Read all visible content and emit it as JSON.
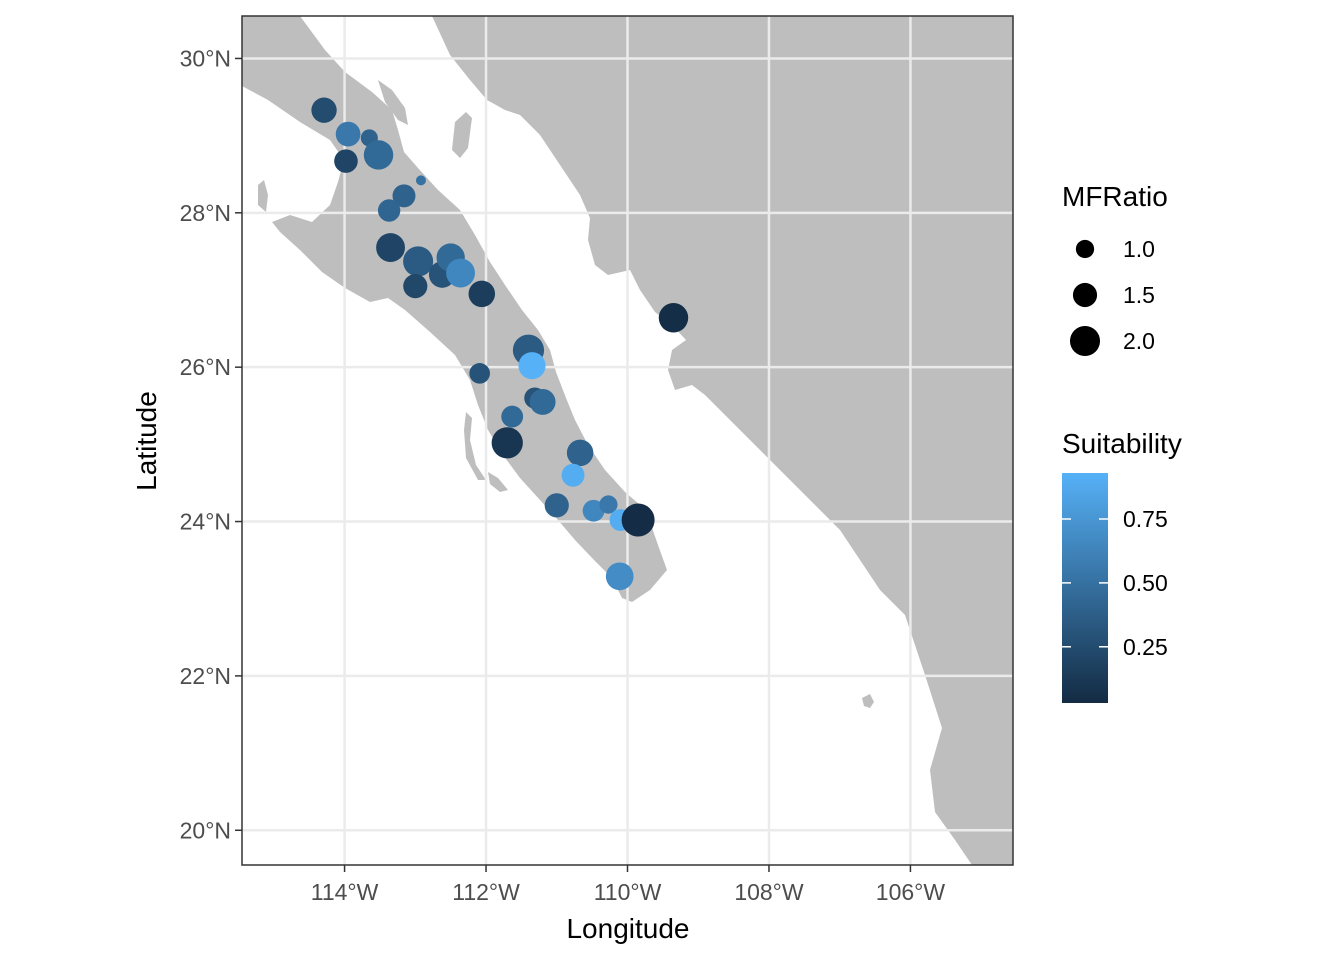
{
  "chart_data": {
    "type": "scatter",
    "xlabel": "Longitude",
    "ylabel": "Latitude",
    "xlim": [
      -115.45,
      -104.55
    ],
    "ylim": [
      19.55,
      30.55
    ],
    "x_ticks": [
      {
        "value": -114,
        "label": "114°W"
      },
      {
        "value": -112,
        "label": "112°W"
      },
      {
        "value": -110,
        "label": "110°W"
      },
      {
        "value": -108,
        "label": "108°W"
      },
      {
        "value": -106,
        "label": "106°W"
      }
    ],
    "y_ticks": [
      {
        "value": 20,
        "label": "20°N"
      },
      {
        "value": 22,
        "label": "22°N"
      },
      {
        "value": 24,
        "label": "24°N"
      },
      {
        "value": 26,
        "label": "26°N"
      },
      {
        "value": 28,
        "label": "28°N"
      },
      {
        "value": 30,
        "label": "30°N"
      }
    ],
    "grid": true,
    "colors": {
      "land": "#bebebe",
      "grid": "#ebebeb",
      "low": "#132b43",
      "high": "#56b1f7"
    },
    "size_legend": {
      "title": "MFRatio",
      "placement": "right",
      "entries": [
        {
          "value": 1.0,
          "label": "1.0"
        },
        {
          "value": 1.5,
          "label": "1.5"
        },
        {
          "value": 2.0,
          "label": "2.0"
        }
      ]
    },
    "color_legend": {
      "title": "Suitability",
      "placement": "right",
      "range": [
        0.03,
        0.93
      ],
      "ticks": [
        {
          "value": 0.25,
          "label": "0.25"
        },
        {
          "value": 0.5,
          "label": "0.50"
        },
        {
          "value": 0.75,
          "label": "0.75"
        }
      ]
    },
    "points": [
      {
        "lon": -114.29,
        "lat": 29.33,
        "mfratio": 1.6,
        "suitability": 0.25
      },
      {
        "lon": -113.95,
        "lat": 29.02,
        "mfratio": 1.55,
        "suitability": 0.55
      },
      {
        "lon": -113.65,
        "lat": 28.97,
        "mfratio": 0.9,
        "suitability": 0.4
      },
      {
        "lon": -113.98,
        "lat": 28.67,
        "mfratio": 1.45,
        "suitability": 0.2
      },
      {
        "lon": -113.52,
        "lat": 28.75,
        "mfratio": 1.95,
        "suitability": 0.45
      },
      {
        "lon": -112.92,
        "lat": 28.42,
        "mfratio": 0.3,
        "suitability": 0.5
      },
      {
        "lon": -113.16,
        "lat": 28.22,
        "mfratio": 1.4,
        "suitability": 0.4
      },
      {
        "lon": -113.37,
        "lat": 28.03,
        "mfratio": 1.35,
        "suitability": 0.42
      },
      {
        "lon": -113.35,
        "lat": 27.55,
        "mfratio": 1.9,
        "suitability": 0.2
      },
      {
        "lon": -112.96,
        "lat": 27.37,
        "mfratio": 2.0,
        "suitability": 0.35
      },
      {
        "lon": -112.62,
        "lat": 27.2,
        "mfratio": 1.7,
        "suitability": 0.3
      },
      {
        "lon": -112.5,
        "lat": 27.42,
        "mfratio": 1.85,
        "suitability": 0.45
      },
      {
        "lon": -112.36,
        "lat": 27.22,
        "mfratio": 1.9,
        "suitability": 0.65
      },
      {
        "lon": -113.0,
        "lat": 27.05,
        "mfratio": 1.5,
        "suitability": 0.22
      },
      {
        "lon": -112.06,
        "lat": 26.95,
        "mfratio": 1.7,
        "suitability": 0.15
      },
      {
        "lon": -109.35,
        "lat": 26.64,
        "mfratio": 1.95,
        "suitability": 0.05
      },
      {
        "lon": -111.4,
        "lat": 26.22,
        "mfratio": 2.1,
        "suitability": 0.35
      },
      {
        "lon": -111.35,
        "lat": 26.02,
        "mfratio": 1.75,
        "suitability": 0.93
      },
      {
        "lon": -112.09,
        "lat": 25.92,
        "mfratio": 1.2,
        "suitability": 0.3
      },
      {
        "lon": -111.31,
        "lat": 25.6,
        "mfratio": 1.25,
        "suitability": 0.3
      },
      {
        "lon": -111.2,
        "lat": 25.55,
        "mfratio": 1.65,
        "suitability": 0.45
      },
      {
        "lon": -111.63,
        "lat": 25.36,
        "mfratio": 1.3,
        "suitability": 0.45
      },
      {
        "lon": -111.7,
        "lat": 25.02,
        "mfratio": 2.1,
        "suitability": 0.1
      },
      {
        "lon": -110.67,
        "lat": 24.89,
        "mfratio": 1.7,
        "suitability": 0.4
      },
      {
        "lon": -110.77,
        "lat": 24.6,
        "mfratio": 1.4,
        "suitability": 0.9
      },
      {
        "lon": -111.0,
        "lat": 24.21,
        "mfratio": 1.5,
        "suitability": 0.4
      },
      {
        "lon": -110.48,
        "lat": 24.14,
        "mfratio": 1.3,
        "suitability": 0.65
      },
      {
        "lon": -110.27,
        "lat": 24.22,
        "mfratio": 1.0,
        "suitability": 0.55
      },
      {
        "lon": -110.1,
        "lat": 24.02,
        "mfratio": 1.3,
        "suitability": 0.9
      },
      {
        "lon": -109.85,
        "lat": 24.02,
        "mfratio": 2.25,
        "suitability": 0.04
      },
      {
        "lon": -110.11,
        "lat": 23.29,
        "mfratio": 1.8,
        "suitability": 0.68
      }
    ]
  }
}
